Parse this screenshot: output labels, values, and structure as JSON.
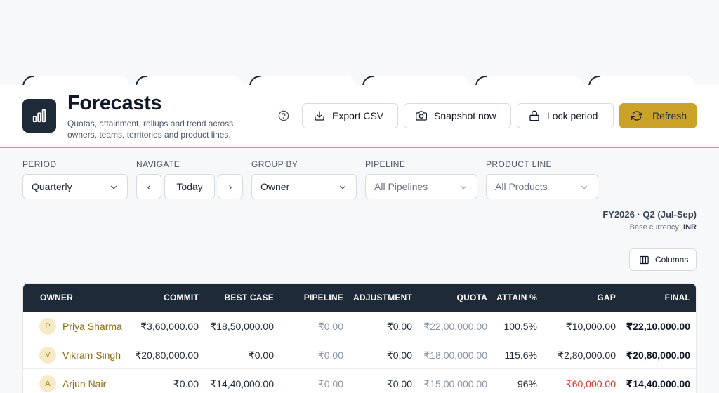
{
  "header": {
    "title": "Forecasts",
    "subtitle": "Quotas, attainment, rollups and trend across owners, teams, territories and product lines."
  },
  "actions": {
    "export_label": "Export CSV",
    "snapshot_label": "Snapshot now",
    "lock_label": "Lock period",
    "refresh_label": "Refresh"
  },
  "filters": {
    "period": {
      "label": "PERIOD",
      "value": "Quarterly"
    },
    "navigate": {
      "label": "NAVIGATE",
      "prev": "‹",
      "today": "Today",
      "next": "›"
    },
    "group_by": {
      "label": "GROUP BY",
      "value": "Owner"
    },
    "pipeline": {
      "label": "PIPELINE",
      "value": "All Pipelines"
    },
    "product_line": {
      "label": "PRODUCT LINE",
      "value": "All Products"
    }
  },
  "period_info": {
    "title": "FY2026 · Q2 (Jul-Sep)",
    "currency_label": "Base currency:",
    "currency": "INR"
  },
  "columns_label": "Columns",
  "table": {
    "headers": {
      "owner": "OWNER",
      "commit": "COMMIT",
      "best_case": "BEST CASE",
      "pipeline": "PIPELINE",
      "adjustment": "ADJUSTMENT",
      "quota": "QUOTA",
      "attain": "ATTAIN %",
      "gap": "GAP",
      "final": "FINAL"
    },
    "rows": [
      {
        "initial": "P",
        "owner": "Priya Sharma",
        "commit": "₹3,60,000.00",
        "best_case": "₹18,50,000.00",
        "pipeline": "₹0.00",
        "adjustment": "₹0.00",
        "quota": "₹22,00,000.00",
        "attain": "100.5%",
        "gap": "₹10,000.00",
        "final": "₹22,10,000.00"
      },
      {
        "initial": "V",
        "owner": "Vikram Singh",
        "commit": "₹20,80,000.00",
        "best_case": "₹0.00",
        "pipeline": "₹0.00",
        "adjustment": "₹0.00",
        "quota": "₹18,00,000.00",
        "attain": "115.6%",
        "gap": "₹2,80,000.00",
        "final": "₹20,80,000.00"
      },
      {
        "initial": "A",
        "owner": "Arjun Nair",
        "commit": "₹0.00",
        "best_case": "₹14,40,000.00",
        "pipeline": "₹0.00",
        "adjustment": "₹0.00",
        "quota": "₹15,00,000.00",
        "attain": "96%",
        "gap": "-₹60,000.00",
        "final": "₹14,40,000.00"
      }
    ]
  },
  "colors": {
    "accent": "#c9a227",
    "header_dark": "#1e2a38",
    "negative": "#d93025"
  }
}
